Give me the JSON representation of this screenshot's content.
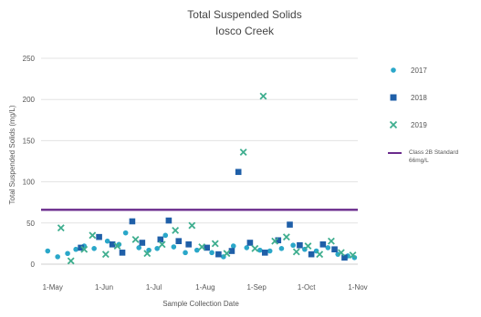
{
  "chart_data": {
    "type": "scatter",
    "title": "Total Suspended Solids",
    "subtitle": "Iosco Creek",
    "xlabel": "Sample Collection Date",
    "ylabel": "Total Suspended Solids (mg/L)",
    "ylim": [
      0,
      250
    ],
    "yticks": [
      "0",
      "50",
      "100",
      "150",
      "200",
      "250"
    ],
    "ytick_values": [
      0,
      50,
      100,
      150,
      200,
      250
    ],
    "xlim": [
      "2000-04-24",
      "2000-11-01"
    ],
    "xticks": [
      {
        "date": "2000-05-01",
        "label": "1-May"
      },
      {
        "date": "2000-06-01",
        "label": "1-Jun"
      },
      {
        "date": "2000-07-01",
        "label": "1-Jul"
      },
      {
        "date": "2000-08-01",
        "label": "1-Aug"
      },
      {
        "date": "2000-09-01",
        "label": "1-Sep"
      },
      {
        "date": "2000-10-01",
        "label": "1-Oct"
      },
      {
        "date": "2000-11-01",
        "label": "1-Nov"
      }
    ],
    "grid": "horizontal",
    "legend_position": "right",
    "series": [
      {
        "name": "2017",
        "marker": "circle",
        "color": "#2aa7c9",
        "points": [
          {
            "x": "2000-04-28",
            "y": 16
          },
          {
            "x": "2000-05-04",
            "y": 9
          },
          {
            "x": "2000-05-10",
            "y": 13
          },
          {
            "x": "2000-05-15",
            "y": 18
          },
          {
            "x": "2000-05-20",
            "y": 22
          },
          {
            "x": "2000-05-26",
            "y": 19
          },
          {
            "x": "2000-06-03",
            "y": 28
          },
          {
            "x": "2000-06-10",
            "y": 24
          },
          {
            "x": "2000-06-14",
            "y": 38
          },
          {
            "x": "2000-06-22",
            "y": 20
          },
          {
            "x": "2000-06-28",
            "y": 17
          },
          {
            "x": "2000-07-03",
            "y": 19
          },
          {
            "x": "2000-07-08",
            "y": 35
          },
          {
            "x": "2000-07-13",
            "y": 21
          },
          {
            "x": "2000-07-20",
            "y": 14
          },
          {
            "x": "2000-07-27",
            "y": 17
          },
          {
            "x": "2000-08-05",
            "y": 14
          },
          {
            "x": "2000-08-12",
            "y": 9
          },
          {
            "x": "2000-08-18",
            "y": 22
          },
          {
            "x": "2000-08-26",
            "y": 20
          },
          {
            "x": "2000-09-03",
            "y": 17
          },
          {
            "x": "2000-09-09",
            "y": 16
          },
          {
            "x": "2000-09-16",
            "y": 19
          },
          {
            "x": "2000-09-23",
            "y": 23
          },
          {
            "x": "2000-09-30",
            "y": 18
          },
          {
            "x": "2000-10-07",
            "y": 16
          },
          {
            "x": "2000-10-14",
            "y": 20
          },
          {
            "x": "2000-10-20",
            "y": 12
          },
          {
            "x": "2000-10-26",
            "y": 10
          },
          {
            "x": "2000-10-30",
            "y": 8
          }
        ]
      },
      {
        "name": "2018",
        "marker": "square",
        "color": "#1f5fa8",
        "points": [
          {
            "x": "2000-05-18",
            "y": 20
          },
          {
            "x": "2000-05-29",
            "y": 33
          },
          {
            "x": "2000-06-06",
            "y": 24
          },
          {
            "x": "2000-06-12",
            "y": 14
          },
          {
            "x": "2000-06-18",
            "y": 52
          },
          {
            "x": "2000-06-24",
            "y": 26
          },
          {
            "x": "2000-07-05",
            "y": 30
          },
          {
            "x": "2000-07-10",
            "y": 53
          },
          {
            "x": "2000-07-16",
            "y": 28
          },
          {
            "x": "2000-07-22",
            "y": 24
          },
          {
            "x": "2000-08-02",
            "y": 20
          },
          {
            "x": "2000-08-09",
            "y": 12
          },
          {
            "x": "2000-08-17",
            "y": 16
          },
          {
            "x": "2000-08-21",
            "y": 112
          },
          {
            "x": "2000-08-28",
            "y": 26
          },
          {
            "x": "2000-09-06",
            "y": 14
          },
          {
            "x": "2000-09-14",
            "y": 29
          },
          {
            "x": "2000-09-21",
            "y": 48
          },
          {
            "x": "2000-09-27",
            "y": 23
          },
          {
            "x": "2000-10-04",
            "y": 12
          },
          {
            "x": "2000-10-11",
            "y": 24
          },
          {
            "x": "2000-10-18",
            "y": 18
          },
          {
            "x": "2000-10-24",
            "y": 8
          }
        ]
      },
      {
        "name": "2019",
        "marker": "x",
        "color": "#3fae8f",
        "points": [
          {
            "x": "2000-05-06",
            "y": 44
          },
          {
            "x": "2000-05-12",
            "y": 4
          },
          {
            "x": "2000-05-20",
            "y": 18
          },
          {
            "x": "2000-05-25",
            "y": 35
          },
          {
            "x": "2000-06-02",
            "y": 12
          },
          {
            "x": "2000-06-09",
            "y": 22
          },
          {
            "x": "2000-06-20",
            "y": 30
          },
          {
            "x": "2000-06-27",
            "y": 13
          },
          {
            "x": "2000-07-06",
            "y": 24
          },
          {
            "x": "2000-07-14",
            "y": 41
          },
          {
            "x": "2000-07-24",
            "y": 47
          },
          {
            "x": "2000-07-30",
            "y": 21
          },
          {
            "x": "2000-08-07",
            "y": 25
          },
          {
            "x": "2000-08-14",
            "y": 13
          },
          {
            "x": "2000-08-24",
            "y": 136
          },
          {
            "x": "2000-08-31",
            "y": 19
          },
          {
            "x": "2000-09-05",
            "y": 204
          },
          {
            "x": "2000-09-12",
            "y": 28
          },
          {
            "x": "2000-09-19",
            "y": 33
          },
          {
            "x": "2000-09-25",
            "y": 15
          },
          {
            "x": "2000-10-02",
            "y": 22
          },
          {
            "x": "2000-10-09",
            "y": 12
          },
          {
            "x": "2000-10-16",
            "y": 28
          },
          {
            "x": "2000-10-22",
            "y": 14
          },
          {
            "x": "2000-10-29",
            "y": 11
          }
        ]
      }
    ],
    "reference_line": {
      "y": 66,
      "color": "#6a2b8c",
      "label_line1": "Class 2B Standard",
      "label_line2": "66mg/L"
    }
  }
}
